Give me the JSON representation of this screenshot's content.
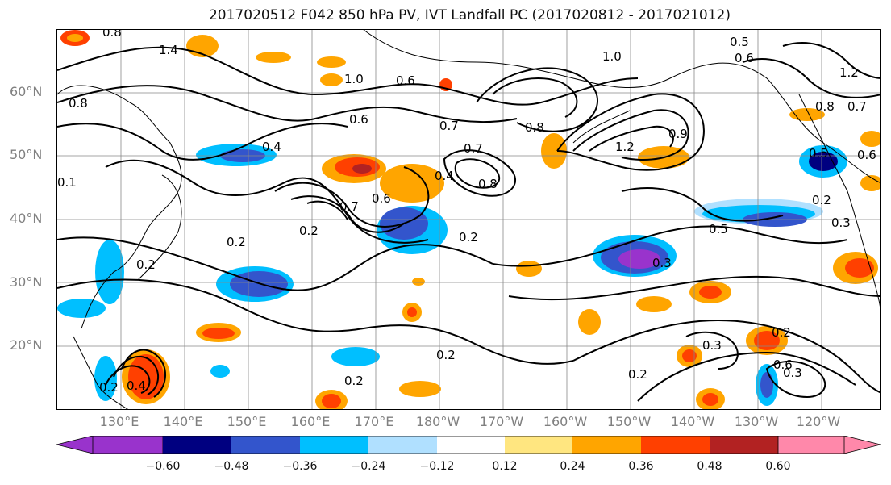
{
  "title": "2017020512 F042 850 hPa PV, IVT Landfall PC (2017020812 - 2017021012)",
  "map": {
    "lat_labels": [
      "60°N",
      "50°N",
      "40°N",
      "30°N",
      "20°N"
    ],
    "lon_labels": [
      "130°E",
      "140°E",
      "150°E",
      "160°E",
      "170°E",
      "180°W",
      "170°W",
      "160°W",
      "150°W",
      "140°W",
      "130°W",
      "120°W"
    ],
    "contour_labels": [
      "0.8",
      "1.4",
      "1.0",
      "0.6",
      "0.8",
      "0.6",
      "0.7",
      "0.4",
      "0.7",
      "0.8",
      "0.7",
      "0.6",
      "0.2",
      "0.4",
      "0.2",
      "0.2",
      "0.5",
      "0.3",
      "0.2",
      "0.2",
      "1.0",
      "1.2",
      "0.5",
      "0.6",
      "0.7",
      "0.8",
      "1.2",
      "0.8",
      "0.9",
      "0.2",
      "0.5",
      "0.6",
      "0.3",
      "0.2",
      "0.2",
      "0.3",
      "0.6",
      "0.4",
      "0.2",
      "0.2",
      "0.3",
      "0.1"
    ]
  },
  "colorbar": {
    "ticks": [
      "−0.60",
      "−0.48",
      "−0.36",
      "−0.24",
      "−0.12",
      "0.12",
      "0.24",
      "0.36",
      "0.48",
      "0.60"
    ],
    "colors": [
      "#9933cc",
      "#000080",
      "#3355cc",
      "#00bfff",
      "#b0e0ff",
      "#ffffff",
      "#ffe680",
      "#ffa500",
      "#ff4000",
      "#b22222",
      "#ff88aa"
    ]
  }
}
